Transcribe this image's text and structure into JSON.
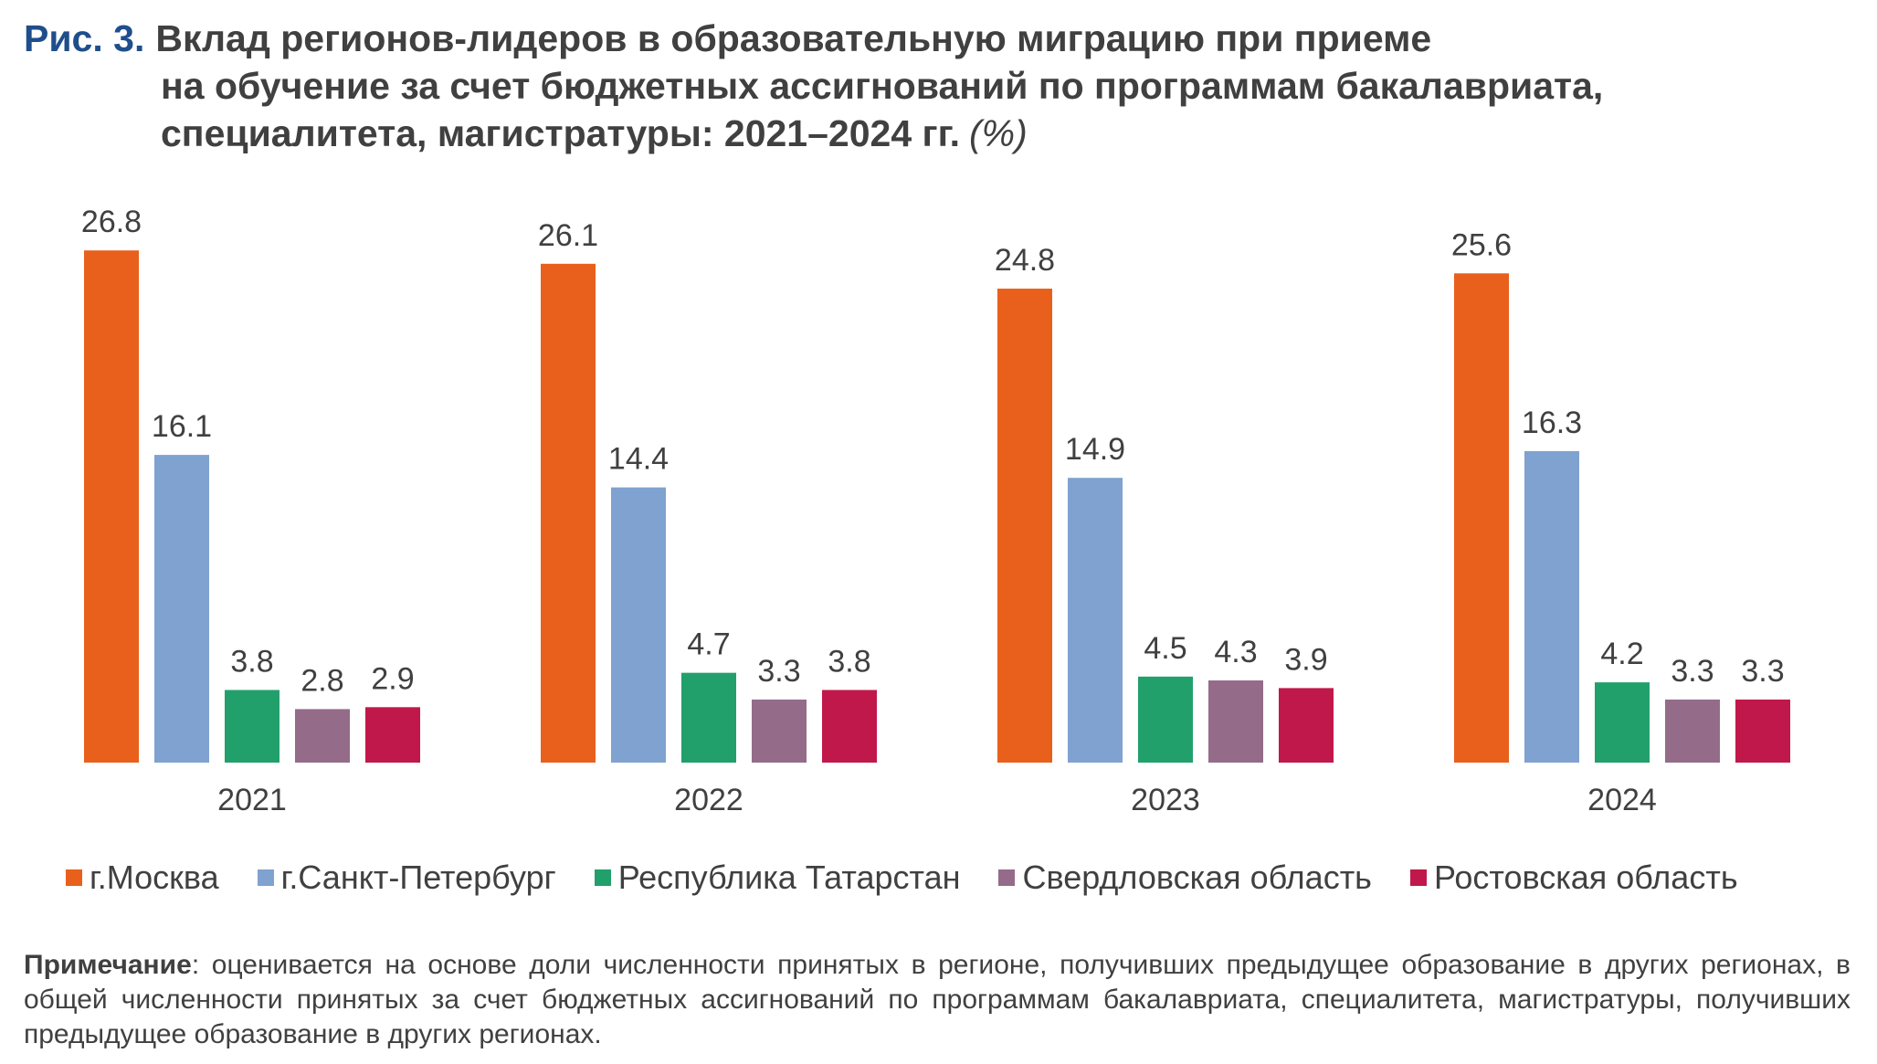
{
  "figure": {
    "label": "Рис. 3.",
    "title_line1": "Вклад регионов-лидеров в образовательную миграцию при приеме",
    "title_line2": "на обучение за счет бюджетных ассигнований по программам бакалавриата,",
    "title_line3": "специалитета, магистратуры: 2021–2024 гг.",
    "unit": "(%)"
  },
  "note": {
    "label": "Примечание",
    "text": ": оценивается на основе доли численности принятых в регионе, получивших предыдущее образование в других регионах, в общей численности принятых за счет бюджетных ассигнований по программам бакалавриата, специалитета, магистратуры, получивших предыдущее образование в других регионах."
  },
  "chart_data": {
    "type": "bar",
    "categories": [
      "2021",
      "2022",
      "2023",
      "2024"
    ],
    "series": [
      {
        "name": "г.Москва",
        "color": "#e8601c",
        "values": [
          26.8,
          26.1,
          24.8,
          25.6
        ]
      },
      {
        "name": "г.Санкт-Петербург",
        "color": "#7fa2d0",
        "values": [
          16.1,
          14.4,
          14.9,
          16.3
        ]
      },
      {
        "name": "Республика Татарстан",
        "color": "#22a06b",
        "values": [
          3.8,
          4.7,
          4.5,
          4.2
        ]
      },
      {
        "name": "Свердловская область",
        "color": "#956b8a",
        "values": [
          2.8,
          3.3,
          4.3,
          3.3
        ]
      },
      {
        "name": "Ростовская область",
        "color": "#c0184a",
        "values": [
          2.9,
          3.8,
          3.9,
          3.3
        ]
      }
    ],
    "ylim": [
      0,
      27
    ],
    "legend_position": "bottom",
    "grid": false
  }
}
